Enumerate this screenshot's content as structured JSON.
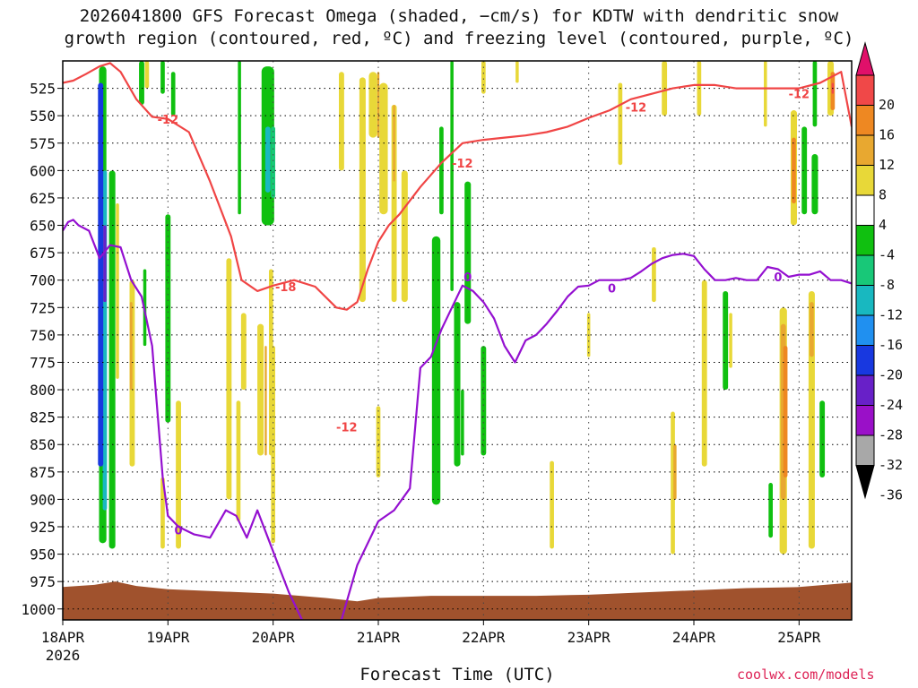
{
  "title_line1": "2026041800 GFS Forecast Omega (shaded, −cm/s) for KDTW with dendritic snow",
  "title_line2": "growth region (contoured, red, ºC) and freezing level (contoured, purple, ºC)",
  "xlabel": "Forecast Time (UTC)",
  "credit": "coolwx.com/models",
  "year_label": "2026",
  "chart_data": {
    "type": "heatmap",
    "title": "2026041800 GFS Forecast Omega (shaded, −cm/s) for KDTW with dendritic snow growth region (contoured, red, ºC) and freezing level (contoured, purple, ºC)",
    "xlabel": "Forecast Time (UTC)",
    "ylabel": "",
    "xlim": [
      0,
      7.5
    ],
    "ylim": [
      1010,
      500
    ],
    "x_tick_labels": [
      "18APR",
      "19APR",
      "20APR",
      "21APR",
      "22APR",
      "23APR",
      "24APR",
      "25APR"
    ],
    "y_ticks": [
      525,
      550,
      575,
      600,
      625,
      650,
      675,
      700,
      725,
      750,
      775,
      800,
      825,
      850,
      875,
      900,
      925,
      950,
      975,
      1000
    ],
    "grid": true,
    "colorbar": {
      "levels": [
        -36,
        -32,
        -28,
        -24,
        -20,
        -16,
        -12,
        -8,
        -4,
        4,
        8,
        12,
        16,
        20
      ],
      "labels": [
        "20",
        "16",
        "12",
        "8",
        "4",
        "-4",
        "-8",
        "-12",
        "-16",
        "-20",
        "-24",
        "-28",
        "-32",
        "-36"
      ],
      "colors_top_to_bottom": [
        "#e0106a",
        "#f04848",
        "#ee8822",
        "#e8a830",
        "#e8d838",
        "#ffffff",
        "#10c010",
        "#18c878",
        "#18b8c0",
        "#2090f0",
        "#1838e0",
        "#6820c8",
        "#9a10c8",
        "#a8a8a8",
        "#000000"
      ]
    },
    "colors": {
      "dgz_contour": "#f04545",
      "freezing_level": "#9410d0",
      "terrain": "#a0522d"
    },
    "contour_labels": [
      {
        "text": "-12",
        "x": 1.0,
        "y": 553
      },
      {
        "text": "-18",
        "x": 2.12,
        "y": 706
      },
      {
        "text": "-12",
        "x": 2.7,
        "y": 834
      },
      {
        "text": "-12",
        "x": 3.8,
        "y": 593
      },
      {
        "text": "-12",
        "x": 5.45,
        "y": 542
      },
      {
        "text": "-12",
        "x": 7.0,
        "y": 530
      },
      {
        "text": "0",
        "x": 1.1,
        "y": 928
      },
      {
        "text": "0",
        "x": 3.85,
        "y": 697
      },
      {
        "text": "0",
        "x": 5.22,
        "y": 707
      },
      {
        "text": "0",
        "x": 6.8,
        "y": 697
      }
    ],
    "series": [
      {
        "x": [
          0,
          0.1,
          0.22,
          0.35,
          0.45,
          0.55,
          0.7,
          0.85,
          1.0,
          1.2,
          1.4,
          1.6,
          1.7,
          1.85,
          2.0,
          2.2,
          2.4,
          2.6,
          2.7,
          2.8,
          2.85,
          2.9,
          3.0,
          3.1,
          3.2,
          3.4,
          3.6,
          3.8,
          4.0,
          4.2,
          4.4,
          4.6,
          4.8,
          5.0,
          5.2,
          5.4,
          5.6,
          5.8,
          6.0,
          6.2,
          6.4,
          6.6,
          6.8,
          7.0,
          7.2,
          7.4,
          7.5
        ],
        "y": [
          520,
          518,
          512,
          505,
          502,
          510,
          535,
          551,
          553,
          565,
          610,
          660,
          700,
          710,
          705,
          700,
          706,
          725,
          727,
          720,
          705,
          690,
          665,
          650,
          640,
          615,
          593,
          575,
          572,
          570,
          568,
          565,
          560,
          552,
          545,
          535,
          530,
          525,
          522,
          522,
          525,
          525,
          525,
          525,
          520,
          510,
          560
        ]
      },
      {
        "x": [
          0,
          0.05,
          0.1,
          0.15,
          0.25,
          0.35,
          0.45,
          0.55,
          0.65,
          0.75,
          0.85,
          0.95,
          1.0,
          1.1,
          1.25,
          1.4,
          1.55,
          1.65,
          1.75,
          1.85,
          1.95,
          2.05,
          2.15,
          2.3,
          2.45,
          2.55,
          2.6,
          2.65,
          2.8,
          3.0,
          3.15,
          3.3,
          3.4,
          3.5,
          3.6,
          3.7,
          3.8,
          3.9,
          4.0,
          4.1,
          4.2,
          4.3,
          4.4,
          4.5,
          4.6,
          4.7,
          4.8,
          4.9,
          5.0,
          5.1,
          5.2,
          5.3,
          5.4,
          5.5,
          5.6,
          5.7,
          5.8,
          5.9,
          6.0,
          6.1,
          6.2,
          6.3,
          6.4,
          6.5,
          6.6,
          6.7,
          6.8,
          6.9,
          7.0,
          7.1,
          7.2,
          7.3,
          7.4,
          7.5
        ],
        "y": [
          655,
          647,
          645,
          650,
          655,
          680,
          668,
          670,
          700,
          715,
          760,
          880,
          915,
          925,
          932,
          935,
          910,
          915,
          935,
          910,
          935,
          960,
          985,
          1015,
          1040,
          1040,
          1025,
          1010,
          960,
          920,
          910,
          890,
          780,
          770,
          745,
          725,
          705,
          710,
          720,
          735,
          760,
          775,
          755,
          750,
          740,
          728,
          715,
          706,
          705,
          700,
          700,
          700,
          698,
          692,
          685,
          680,
          677,
          676,
          678,
          690,
          700,
          700,
          698,
          700,
          700,
          688,
          690,
          697,
          695,
          695,
          692,
          700,
          700,
          703
        ]
      }
    ]
  }
}
